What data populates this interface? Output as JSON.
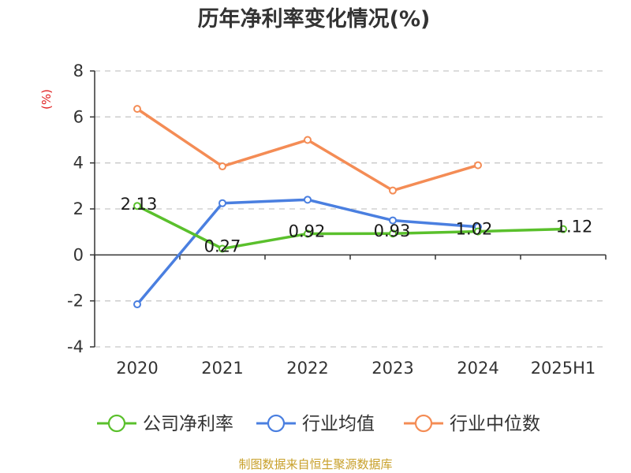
{
  "colors": {
    "company": "#5ac02c",
    "industry_avg": "#4a7fe0",
    "industry_median": "#f48c55",
    "ylabel": "#e02020",
    "source": "#c8a02a"
  },
  "legend_placement": "bottom",
  "source_note": "制图数据来自恒生聚源数据库",
  "chart_data": {
    "type": "line",
    "title": "历年净利率变化情况(%)",
    "xlabel": "",
    "ylabel": "(%)",
    "categories": [
      "2020",
      "2021",
      "2022",
      "2023",
      "2024",
      "2025H1"
    ],
    "ylim": [
      -4,
      8
    ],
    "yticks": [
      "8",
      "6",
      "4",
      "2",
      "0",
      "-2",
      "-4"
    ],
    "grid": true,
    "series": [
      {
        "name": "公司净利率",
        "color": "#5ac02c",
        "values": [
          2.13,
          0.27,
          0.92,
          0.93,
          1.02,
          1.12
        ],
        "labels": [
          "2.13",
          "0.27",
          "0.92",
          "0.93",
          "1.02",
          "1.12"
        ]
      },
      {
        "name": "行业均值",
        "color": "#4a7fe0",
        "values": [
          -2.15,
          2.25,
          2.4,
          1.5,
          1.22,
          null
        ]
      },
      {
        "name": "行业中位数",
        "color": "#f48c55",
        "values": [
          6.35,
          3.85,
          5.0,
          2.8,
          3.9,
          null
        ]
      }
    ]
  }
}
